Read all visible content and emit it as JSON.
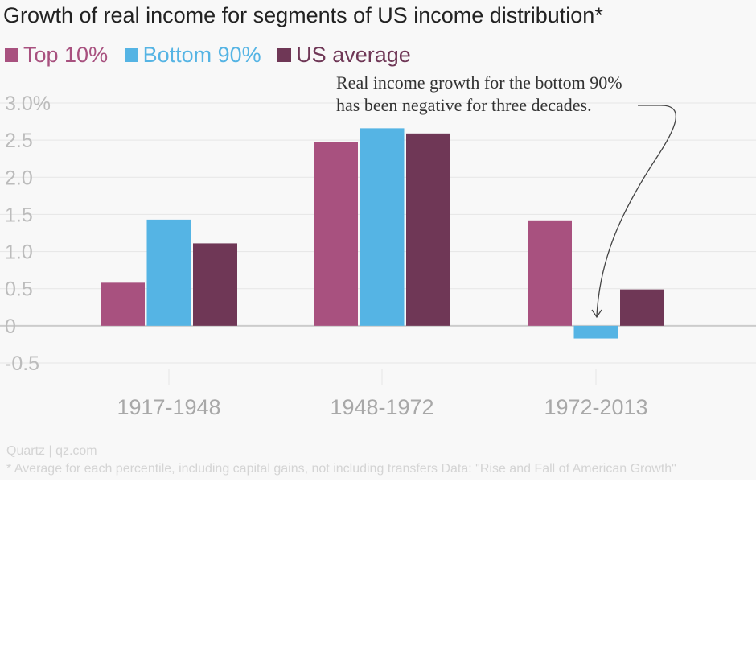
{
  "chart_data": {
    "type": "bar",
    "title": "Growth of real income for segments of US income distribution*",
    "categories": [
      "1917-1948",
      "1948-1972",
      "1972-2013"
    ],
    "series": [
      {
        "name": "Top 10%",
        "color": "#a8517f",
        "values": [
          0.58,
          2.47,
          1.42
        ]
      },
      {
        "name": "Bottom 90%",
        "color": "#55b4e4",
        "values": [
          1.43,
          2.66,
          -0.17
        ]
      },
      {
        "name": "US average",
        "color": "#6f3756",
        "values": [
          1.11,
          2.59,
          0.49
        ]
      }
    ],
    "y_ticks": [
      "3.0%",
      "2.5",
      "2.0",
      "1.5",
      "1.0",
      "0.5",
      "0",
      "-0.5"
    ],
    "y_tick_values": [
      3.0,
      2.5,
      2.0,
      1.5,
      1.0,
      0.5,
      0,
      -0.5
    ],
    "ylim": [
      -0.5,
      3.0
    ],
    "xlabel": "",
    "ylabel": "",
    "grid": true,
    "legend_position": "top-left",
    "annotation": {
      "lines": [
        "Real income growth for the bottom 90%",
        "has been negative for three decades."
      ],
      "points_to": {
        "category": "1972-2013",
        "series": "Bottom 90%"
      }
    }
  },
  "source": "Quartz | qz.com",
  "footnote": "* Average for each percentile, including capital gains, not including transfers Data: \"Rise and Fall of American Growth\"",
  "colors": {
    "background": "#f8f8f8",
    "grid": "#e6e6e6",
    "zero_line": "#cccccc"
  }
}
